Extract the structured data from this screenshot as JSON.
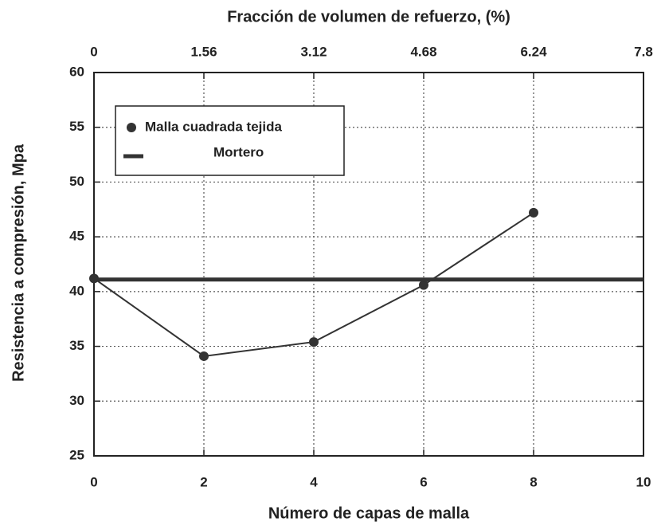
{
  "chart_data": {
    "type": "line",
    "title": "Fracción de volumen de refuerzo, (%)",
    "x_label": "Número de capas de malla",
    "y_label": "Resistencia a compresión, Mpa",
    "xlim": [
      0,
      10
    ],
    "xticks": [
      0,
      2,
      4,
      6,
      8,
      10
    ],
    "x2lim": [
      0,
      7.8
    ],
    "x2ticks": [
      0,
      1.56,
      3.12,
      4.68,
      6.24,
      7.8
    ],
    "ylim": [
      25,
      60
    ],
    "yticks": [
      25,
      30,
      35,
      40,
      45,
      50,
      55,
      60
    ],
    "grid": true,
    "legend": "upper left",
    "series": [
      {
        "name": "Malla cuadrada tejida",
        "color": "#333333",
        "marker": "circle",
        "x": [
          0,
          2,
          4,
          6,
          8
        ],
        "values": [
          41.2,
          34.1,
          35.4,
          40.6,
          47.2
        ]
      },
      {
        "name": "Mortero",
        "color": "#333333",
        "marker": "none",
        "x": [
          0,
          10
        ],
        "values": [
          41.1,
          41.1
        ]
      }
    ]
  }
}
